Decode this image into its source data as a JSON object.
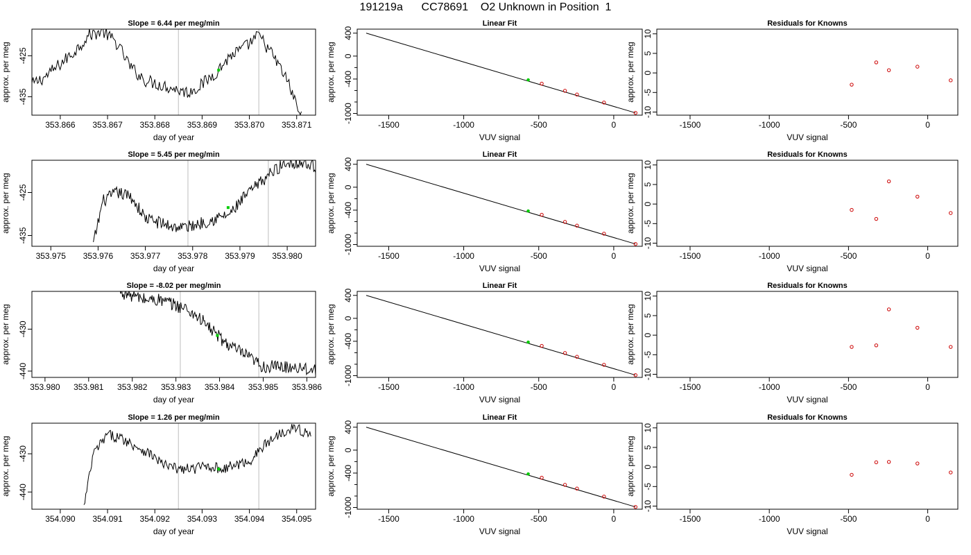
{
  "figure": {
    "title": "191219a      CC78691    O2 Unknown in Position  1"
  },
  "colors": {
    "trace": "#000000",
    "fit_line": "#000000",
    "window_line": "#cccccc",
    "midpoint": "#00cc00",
    "known_points": "#cc0000",
    "unknown_point": "#00cc00"
  },
  "chart_data": [
    {
      "type": "line",
      "panel": "row1-trace",
      "title": "Slope =  6.44  per meg/min",
      "xlabel": "day of year",
      "ylabel": "approx. per meg",
      "xlim": [
        353.8654,
        353.8714
      ],
      "ylim": [
        -439.5,
        -418.5
      ],
      "xticks": [
        "353.866",
        "353.867",
        "353.868",
        "353.869",
        "353.870",
        "353.871"
      ],
      "yticks": [
        "-425",
        "-435"
      ],
      "window_lines_x": [
        353.8685,
        353.8702
      ],
      "midpoint": {
        "x": 353.86935,
        "y": -428.5
      },
      "anchors": {
        "x": [
          353.8654,
          353.8657,
          353.866,
          353.8663,
          353.8666,
          353.8669,
          353.8672,
          353.8675,
          353.8678,
          353.8681,
          353.8684,
          353.8687,
          353.869,
          353.8693,
          353.8696,
          353.8699,
          353.8702,
          353.8705,
          353.8708,
          353.8711
        ],
        "y": [
          -432,
          -430,
          -427,
          -424,
          -420,
          -419,
          -422,
          -428,
          -431,
          -432,
          -433,
          -434,
          -432,
          -429,
          -425,
          -423,
          -420,
          -425,
          -431,
          -440
        ]
      },
      "noise_amplitude": 1.6
    },
    {
      "type": "line",
      "panel": "row2-trace",
      "title": "Slope =  5.45  per meg/min",
      "xlabel": "day of year",
      "ylabel": "approx. per meg",
      "xlim": [
        353.9746,
        353.9806
      ],
      "ylim": [
        -437.5,
        -417.5
      ],
      "xticks": [
        "353.975",
        "353.976",
        "353.977",
        "353.978",
        "353.979",
        "353.980"
      ],
      "yticks": [
        "-425",
        "-435"
      ],
      "window_lines_x": [
        353.9779,
        353.9796
      ],
      "midpoint": {
        "x": 353.97875,
        "y": -428.5
      },
      "anchors": {
        "x": [
          353.9759,
          353.9761,
          353.9764,
          353.9767,
          353.977,
          353.9773,
          353.9776,
          353.9779,
          353.9782,
          353.9785,
          353.9788,
          353.9791,
          353.9794,
          353.9797,
          353.98,
          353.9803,
          353.9806
        ],
        "y": [
          -437,
          -427,
          -425,
          -426,
          -431,
          -432,
          -433,
          -433,
          -432,
          -431,
          -430,
          -426,
          -423,
          -420,
          -418,
          -418,
          -419
        ]
      },
      "noise_amplitude": 1.5
    },
    {
      "type": "line",
      "panel": "row3-trace",
      "title": "Slope =  -8.02  per meg/min",
      "xlabel": "day of year",
      "ylabel": "approx. per meg",
      "xlim": [
        353.9797,
        353.9862
      ],
      "ylim": [
        -441.5,
        -421.0
      ],
      "xticks": [
        "353.980",
        "353.981",
        "353.982",
        "353.983",
        "353.984",
        "353.985",
        "353.986"
      ],
      "yticks": [
        "-430",
        "-440"
      ],
      "window_lines_x": [
        353.9831,
        353.9849
      ],
      "midpoint": {
        "x": 353.98395,
        "y": -431.5
      },
      "anchors": {
        "x": [
          353.9817,
          353.982,
          353.9823,
          353.9826,
          353.9829,
          353.9832,
          353.9835,
          353.9838,
          353.9841,
          353.9844,
          353.9847,
          353.985,
          353.9853,
          353.9856,
          353.9859,
          353.9862
        ],
        "y": [
          -421,
          -422,
          -423,
          -423,
          -424,
          -425,
          -427,
          -430,
          -433,
          -435,
          -437,
          -439,
          -439,
          -439,
          -439,
          -440
        ]
      },
      "noise_amplitude": 1.6
    },
    {
      "type": "line",
      "panel": "row4-trace",
      "title": "Slope =  1.26  per meg/min",
      "xlabel": "day of year",
      "ylabel": "approx. per meg",
      "xlim": [
        354.0894,
        354.0954
      ],
      "ylim": [
        -444.5,
        -422.0
      ],
      "xticks": [
        "354.090",
        "354.091",
        "354.092",
        "354.093",
        "354.094",
        "354.095"
      ],
      "yticks": [
        "-430",
        "-440"
      ],
      "window_lines_x": [
        354.0925,
        354.0942
      ],
      "midpoint": {
        "x": 354.09335,
        "y": -434.0
      },
      "anchors": {
        "x": [
          354.0905,
          354.0907,
          354.091,
          354.0913,
          354.0916,
          354.0919,
          354.0922,
          354.0925,
          354.0928,
          354.0931,
          354.0934,
          354.0937,
          354.094,
          354.0943,
          354.0946,
          354.0949,
          354.0953
        ],
        "y": [
          -444,
          -430,
          -425,
          -426,
          -428,
          -430,
          -433,
          -434,
          -434,
          -433,
          -434,
          -433,
          -432,
          -428,
          -425,
          -423,
          -425
        ]
      },
      "noise_amplitude": 1.4
    },
    {
      "type": "scatter",
      "panel": "row1-fit",
      "title": "Linear Fit",
      "xlabel": "VUV signal",
      "ylabel": "approx. per meg",
      "xlim": [
        -1710,
        190
      ],
      "ylim": [
        -1030,
        470
      ],
      "xticks": [
        "-1500",
        "-1000",
        "-500",
        "0"
      ],
      "yticks": [
        "400",
        "0",
        "-400",
        "-1000"
      ],
      "fit_line": {
        "x": [
          -1650,
          145
        ],
        "y": [
          400,
          -990
        ]
      },
      "knowns": {
        "x": [
          -480,
          -325,
          -245,
          -65,
          145
        ],
        "y": [
          -480,
          -605,
          -670,
          -810,
          -990
        ]
      },
      "unknown": {
        "x": -570,
        "y": -415
      }
    },
    {
      "type": "scatter",
      "panel": "row2-fit",
      "title": "Linear Fit",
      "xlabel": "VUV signal",
      "ylabel": "approx. per meg",
      "xlim": [
        -1710,
        190
      ],
      "ylim": [
        -1030,
        470
      ],
      "xticks": [
        "-1500",
        "-1000",
        "-500",
        "0"
      ],
      "yticks": [
        "400",
        "0",
        "-400",
        "-1000"
      ],
      "fit_line": {
        "x": [
          -1650,
          145
        ],
        "y": [
          400,
          -990
        ]
      },
      "knowns": {
        "x": [
          -480,
          -325,
          -245,
          -65,
          145
        ],
        "y": [
          -480,
          -605,
          -670,
          -810,
          -990
        ]
      },
      "unknown": {
        "x": -570,
        "y": -415
      }
    },
    {
      "type": "scatter",
      "panel": "row3-fit",
      "title": "Linear Fit",
      "xlabel": "VUV signal",
      "ylabel": "approx. per meg",
      "xlim": [
        -1710,
        190
      ],
      "ylim": [
        -1030,
        470
      ],
      "xticks": [
        "-1500",
        "-1000",
        "-500",
        "0"
      ],
      "yticks": [
        "400",
        "0",
        "-400",
        "-1000"
      ],
      "fit_line": {
        "x": [
          -1650,
          145
        ],
        "y": [
          400,
          -990
        ]
      },
      "knowns": {
        "x": [
          -480,
          -325,
          -245,
          -65,
          145
        ],
        "y": [
          -480,
          -605,
          -670,
          -810,
          -990
        ]
      },
      "unknown": {
        "x": -570,
        "y": -415
      }
    },
    {
      "type": "scatter",
      "panel": "row4-fit",
      "title": "Linear Fit",
      "xlabel": "VUV signal",
      "ylabel": "approx. per meg",
      "xlim": [
        -1710,
        190
      ],
      "ylim": [
        -1030,
        470
      ],
      "xticks": [
        "-1500",
        "-1000",
        "-500",
        "0"
      ],
      "yticks": [
        "400",
        "0",
        "-400",
        "-1000"
      ],
      "fit_line": {
        "x": [
          -1650,
          145
        ],
        "y": [
          400,
          -990
        ]
      },
      "knowns": {
        "x": [
          -480,
          -325,
          -245,
          -65,
          145
        ],
        "y": [
          -480,
          -605,
          -670,
          -810,
          -990
        ]
      },
      "unknown": {
        "x": -570,
        "y": -415
      }
    },
    {
      "type": "scatter",
      "panel": "row1-residuals",
      "title": "Residuals for Knowns",
      "xlabel": "VUV signal",
      "ylabel": "approx. per meg",
      "xlim": [
        -1710,
        190
      ],
      "ylim": [
        -10.8,
        11.2
      ],
      "xticks": [
        "-1500",
        "-1000",
        "-500",
        "0"
      ],
      "yticks": [
        "10",
        "5",
        "0",
        "-5",
        "-10"
      ],
      "residuals": {
        "x": [
          -480,
          -325,
          -245,
          -65,
          145
        ],
        "y": [
          -3.0,
          2.7,
          0.7,
          1.6,
          -1.9
        ]
      }
    },
    {
      "type": "scatter",
      "panel": "row2-residuals",
      "title": "Residuals for Knowns",
      "xlabel": "VUV signal",
      "ylabel": "approx. per meg",
      "xlim": [
        -1710,
        190
      ],
      "ylim": [
        -10.8,
        11.2
      ],
      "xticks": [
        "-1500",
        "-1000",
        "-500",
        "0"
      ],
      "yticks": [
        "10",
        "5",
        "0",
        "-5",
        "-10"
      ],
      "residuals": {
        "x": [
          -480,
          -325,
          -245,
          -65,
          145
        ],
        "y": [
          -1.5,
          -3.8,
          5.8,
          1.9,
          -2.3
        ]
      }
    },
    {
      "type": "scatter",
      "panel": "row3-residuals",
      "title": "Residuals for Knowns",
      "xlabel": "VUV signal",
      "ylabel": "approx. per meg",
      "xlim": [
        -1710,
        190
      ],
      "ylim": [
        -10.8,
        11.2
      ],
      "xticks": [
        "-1500",
        "-1000",
        "-500",
        "0"
      ],
      "yticks": [
        "10",
        "5",
        "0",
        "-5",
        "-10"
      ],
      "residuals": {
        "x": [
          -480,
          -325,
          -245,
          -65,
          145
        ],
        "y": [
          -3.0,
          -2.6,
          6.6,
          1.9,
          -3.0
        ]
      }
    },
    {
      "type": "scatter",
      "panel": "row4-residuals",
      "title": "Residuals for Knowns",
      "xlabel": "VUV signal",
      "ylabel": "approx. per meg",
      "xlim": [
        -1710,
        190
      ],
      "ylim": [
        -10.8,
        11.2
      ],
      "xticks": [
        "-1500",
        "-1000",
        "-500",
        "0"
      ],
      "yticks": [
        "10",
        "5",
        "0",
        "-5",
        "-10"
      ],
      "residuals": {
        "x": [
          -480,
          -325,
          -245,
          -65,
          145
        ],
        "y": [
          -2.0,
          1.2,
          1.3,
          0.9,
          -1.4
        ]
      }
    }
  ]
}
